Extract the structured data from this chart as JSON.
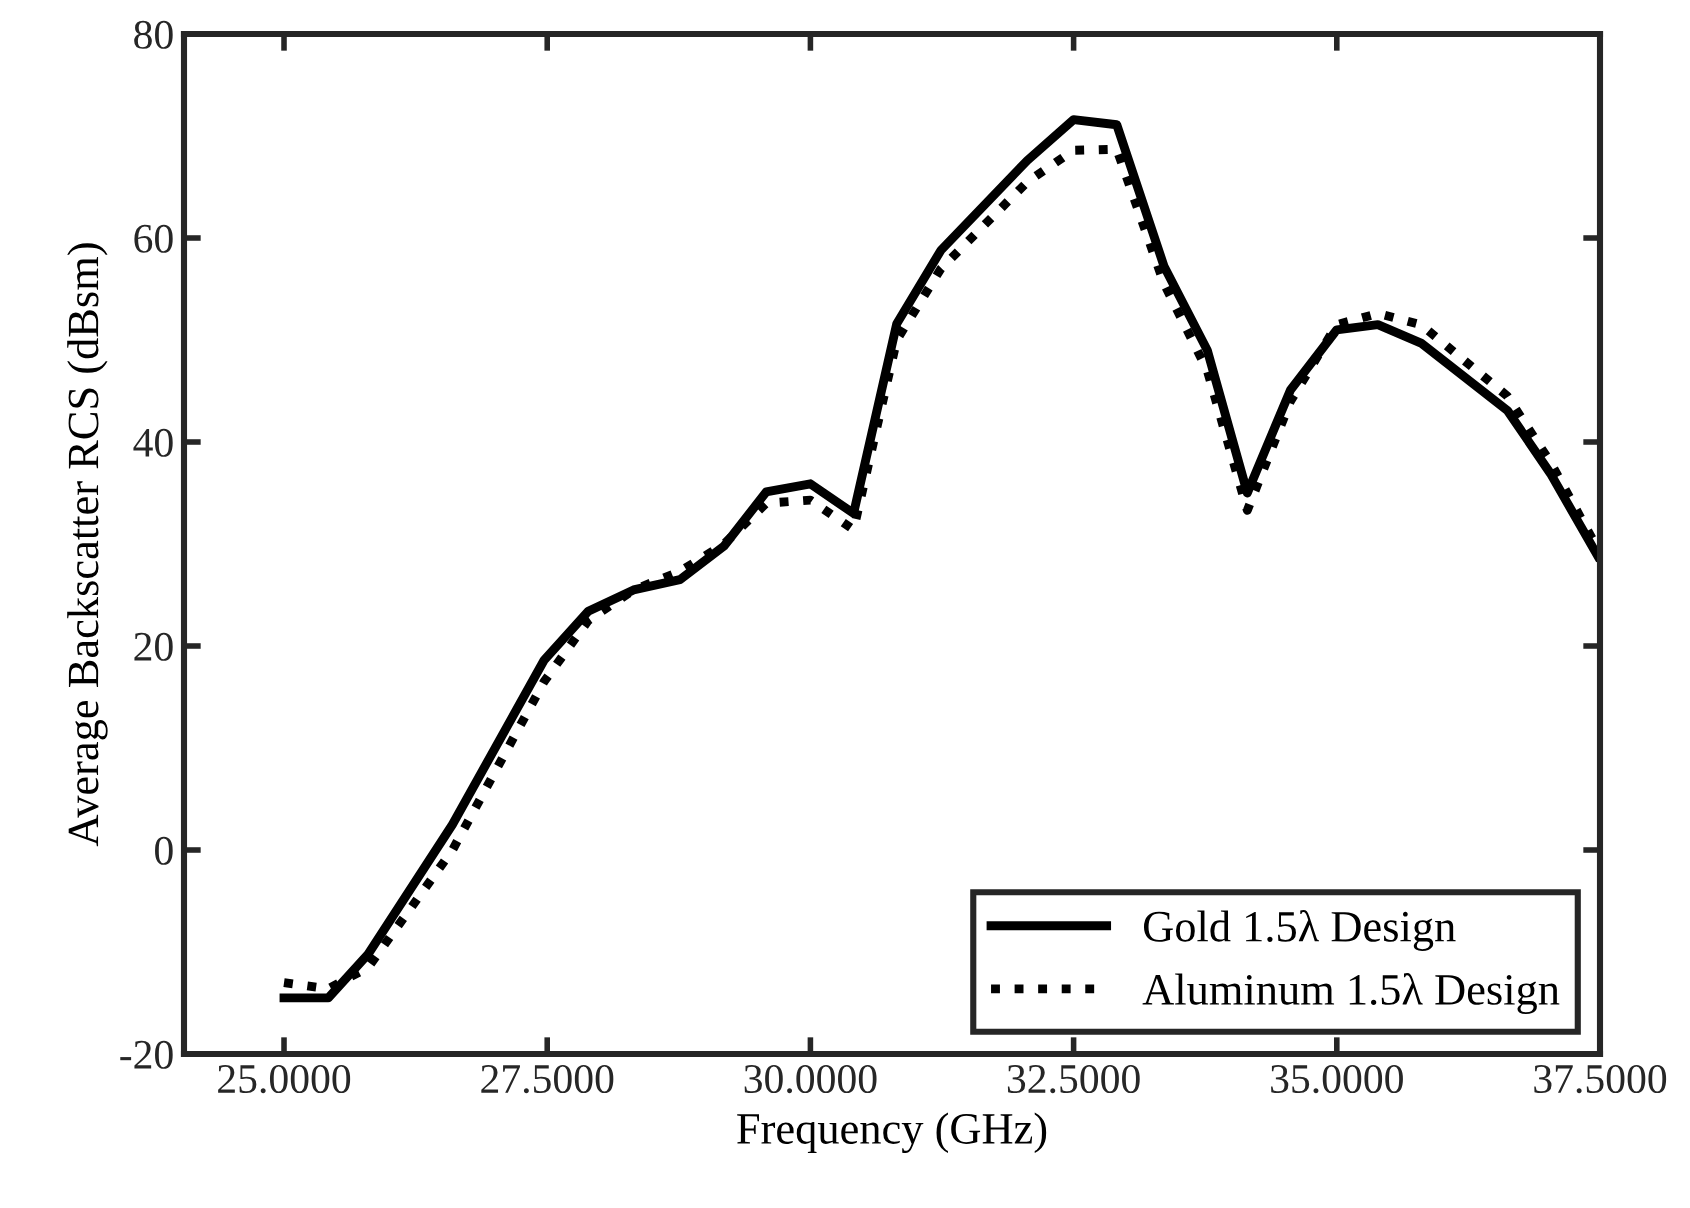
{
  "chart_data": {
    "type": "line",
    "xlabel": "Frequency (GHz)",
    "ylabel": "Average Backscatter RCS (dBsm)",
    "xlim": [
      24.05,
      37.5
    ],
    "xticks": [
      {
        "value": 25,
        "label": "25.0000"
      },
      {
        "value": 27.5,
        "label": "27.5000"
      },
      {
        "value": 30,
        "label": "30.0000"
      },
      {
        "value": 32.5,
        "label": "32.5000"
      },
      {
        "value": 35,
        "label": "35.0000"
      },
      {
        "value": 37.5,
        "label": "37.5000"
      }
    ],
    "ylim": [
      -20,
      80
    ],
    "yticks": [
      -20,
      0,
      20,
      40,
      60,
      80
    ],
    "x": [
      25.0,
      25.42,
      25.8,
      26.6,
      27.47,
      27.89,
      28.32,
      28.76,
      29.18,
      29.58,
      30.0,
      30.41,
      30.82,
      31.24,
      32.06,
      32.5,
      32.91,
      33.36,
      33.77,
      34.15,
      34.56,
      35.0,
      35.39,
      35.8,
      36.62,
      37.03,
      37.48
    ],
    "series": [
      {
        "name": "Gold 1.5λ Design",
        "color": "#000000",
        "line_style": "solid",
        "values": [
          -14.5,
          -14.5,
          -10.2,
          2.5,
          18.6,
          23.4,
          25.5,
          26.5,
          29.8,
          35.1,
          35.9,
          33.0,
          51.6,
          58.8,
          67.6,
          71.6,
          71.1,
          57.2,
          49.0,
          35.0,
          45.1,
          51.0,
          51.5,
          49.7,
          43.1,
          36.9,
          28.8
        ]
      },
      {
        "name": "Aluminum 1.5λ Design",
        "color": "#000000",
        "line_style": "dotted",
        "values": [
          -13.0,
          -13.6,
          -11.5,
          0.0,
          16.5,
          22.5,
          25.5,
          27.3,
          30.0,
          34.0,
          34.3,
          31.4,
          50.0,
          57.0,
          65.5,
          68.6,
          68.7,
          55.5,
          47.0,
          33.3,
          44.0,
          51.5,
          52.6,
          51.5,
          44.5,
          38.0,
          29.5
        ]
      }
    ],
    "grid": false,
    "legend": "bottom right",
    "marker": "none"
  }
}
